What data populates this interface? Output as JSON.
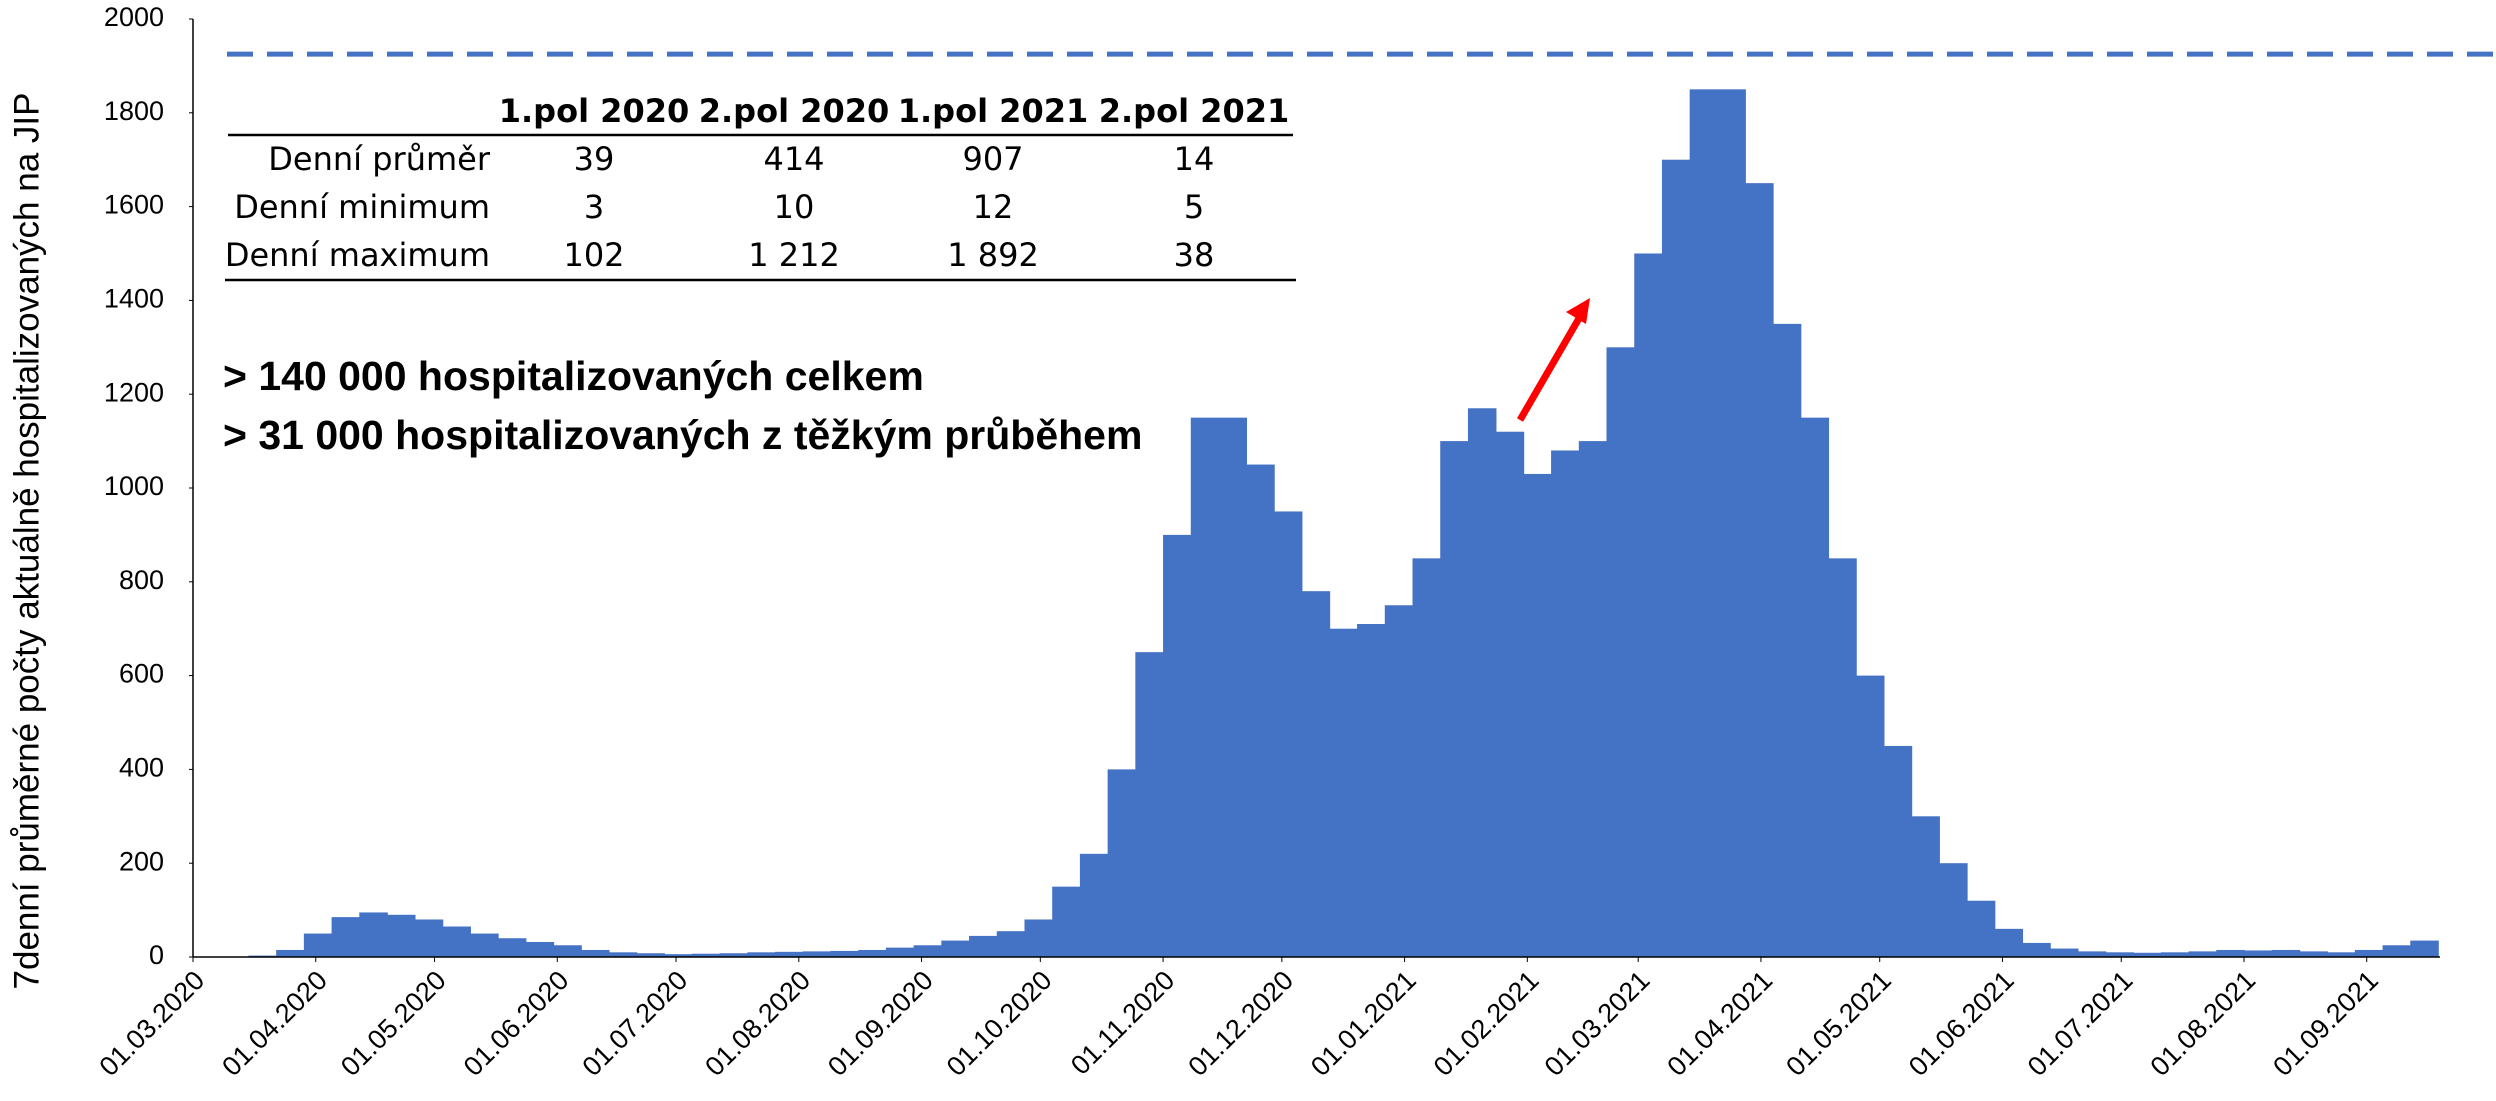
{
  "chart_data": {
    "type": "bar",
    "y_label": "7denní  průměrné počty aktuálně hospitalizovaných na JIP",
    "color": "#4472c4",
    "x": [
      "2020-03-01",
      "2020-03-08",
      "2020-03-15",
      "2020-03-22",
      "2020-03-29",
      "2020-04-05",
      "2020-04-12",
      "2020-04-19",
      "2020-04-26",
      "2020-05-03",
      "2020-05-10",
      "2020-05-17",
      "2020-05-24",
      "2020-05-31",
      "2020-06-07",
      "2020-06-14",
      "2020-06-21",
      "2020-06-28",
      "2020-07-05",
      "2020-07-12",
      "2020-07-19",
      "2020-07-26",
      "2020-08-02",
      "2020-08-09",
      "2020-08-16",
      "2020-08-23",
      "2020-08-30",
      "2020-09-06",
      "2020-09-13",
      "2020-09-20",
      "2020-09-27",
      "2020-10-04",
      "2020-10-11",
      "2020-10-18",
      "2020-10-25",
      "2020-11-01",
      "2020-11-08",
      "2020-11-15",
      "2020-11-22",
      "2020-11-29",
      "2020-12-06",
      "2020-12-13",
      "2020-12-20",
      "2020-12-27",
      "2021-01-03",
      "2021-01-10",
      "2021-01-17",
      "2021-01-24",
      "2021-01-31",
      "2021-02-07",
      "2021-02-14",
      "2021-02-21",
      "2021-02-28",
      "2021-03-07",
      "2021-03-14",
      "2021-03-21",
      "2021-03-28",
      "2021-04-04",
      "2021-04-11",
      "2021-04-18",
      "2021-04-25",
      "2021-05-02",
      "2021-05-09",
      "2021-05-16",
      "2021-05-23",
      "2021-05-30",
      "2021-06-06",
      "2021-06-13",
      "2021-06-20",
      "2021-06-27",
      "2021-07-04",
      "2021-07-11",
      "2021-07-18",
      "2021-07-25",
      "2021-08-01",
      "2021-08-08",
      "2021-08-15",
      "2021-08-22",
      "2021-08-29",
      "2021-09-05",
      "2021-09-12"
    ],
    "values": [
      0,
      0,
      3,
      15,
      50,
      85,
      95,
      90,
      80,
      65,
      50,
      40,
      32,
      25,
      15,
      10,
      8,
      6,
      7,
      8,
      10,
      11,
      12,
      13,
      15,
      20,
      25,
      35,
      45,
      55,
      80,
      150,
      220,
      400,
      650,
      900,
      1150,
      1150,
      1050,
      950,
      780,
      700,
      710,
      750,
      850,
      1100,
      1170,
      1120,
      1030,
      1080,
      1100,
      1300,
      1500,
      1700,
      1850,
      1850,
      1650,
      1350,
      1150,
      850,
      600,
      450,
      300,
      200,
      120,
      60,
      30,
      18,
      12,
      10,
      9,
      10,
      12,
      15,
      14,
      15,
      12,
      10,
      15,
      25,
      35
    ],
    "ylim": [
      0,
      2000
    ],
    "yticks": [
      0,
      200,
      400,
      600,
      800,
      1000,
      1200,
      1400,
      1600,
      1800,
      2000
    ],
    "xlim": [
      "2020-03-01",
      "2021-09-19"
    ],
    "xticks": [
      {
        "value": "2020-03-01",
        "label": "01.03.2020"
      },
      {
        "value": "2020-04-01",
        "label": "01.04.2020"
      },
      {
        "value": "2020-05-01",
        "label": "01.05.2020"
      },
      {
        "value": "2020-06-01",
        "label": "01.06.2020"
      },
      {
        "value": "2020-07-01",
        "label": "01.07.2020"
      },
      {
        "value": "2020-08-01",
        "label": "01.08.2020"
      },
      {
        "value": "2020-09-01",
        "label": "01.09.2020"
      },
      {
        "value": "2020-10-01",
        "label": "01.10.2020"
      },
      {
        "value": "2020-11-01",
        "label": "01.11.2020"
      },
      {
        "value": "2020-12-01",
        "label": "01.12.2020"
      },
      {
        "value": "2021-01-01",
        "label": "01.01.2021"
      },
      {
        "value": "2021-02-01",
        "label": "01.02.2021"
      },
      {
        "value": "2021-03-01",
        "label": "01.03.2021"
      },
      {
        "value": "2021-04-01",
        "label": "01.04.2021"
      },
      {
        "value": "2021-05-01",
        "label": "01.05.2021"
      },
      {
        "value": "2021-06-01",
        "label": "01.06.2021"
      },
      {
        "value": "2021-07-01",
        "label": "01.07.2021"
      },
      {
        "value": "2021-08-01",
        "label": "01.08.2021"
      },
      {
        "value": "2021-09-01",
        "label": "01.09.2021"
      }
    ],
    "reference_line": {
      "value": 1925,
      "color": "#4472c4"
    },
    "annotations": [
      "> 140 000 hospitalizovaných celkem",
      "> 31 000 hospitalizovaných z těžkým průběhem"
    ],
    "table": {
      "header": [
        "1.pol 2020",
        "2.pol 2020",
        "1.pol 2021",
        "2.pol 2021"
      ],
      "rows": [
        [
          "Denní průměr",
          "39",
          "414",
          "907",
          "14"
        ],
        [
          "Denní minimum",
          "3",
          "10",
          "12",
          "5"
        ],
        [
          "Denní maximum",
          "102",
          "1 212",
          "1 892",
          "38"
        ]
      ]
    }
  }
}
